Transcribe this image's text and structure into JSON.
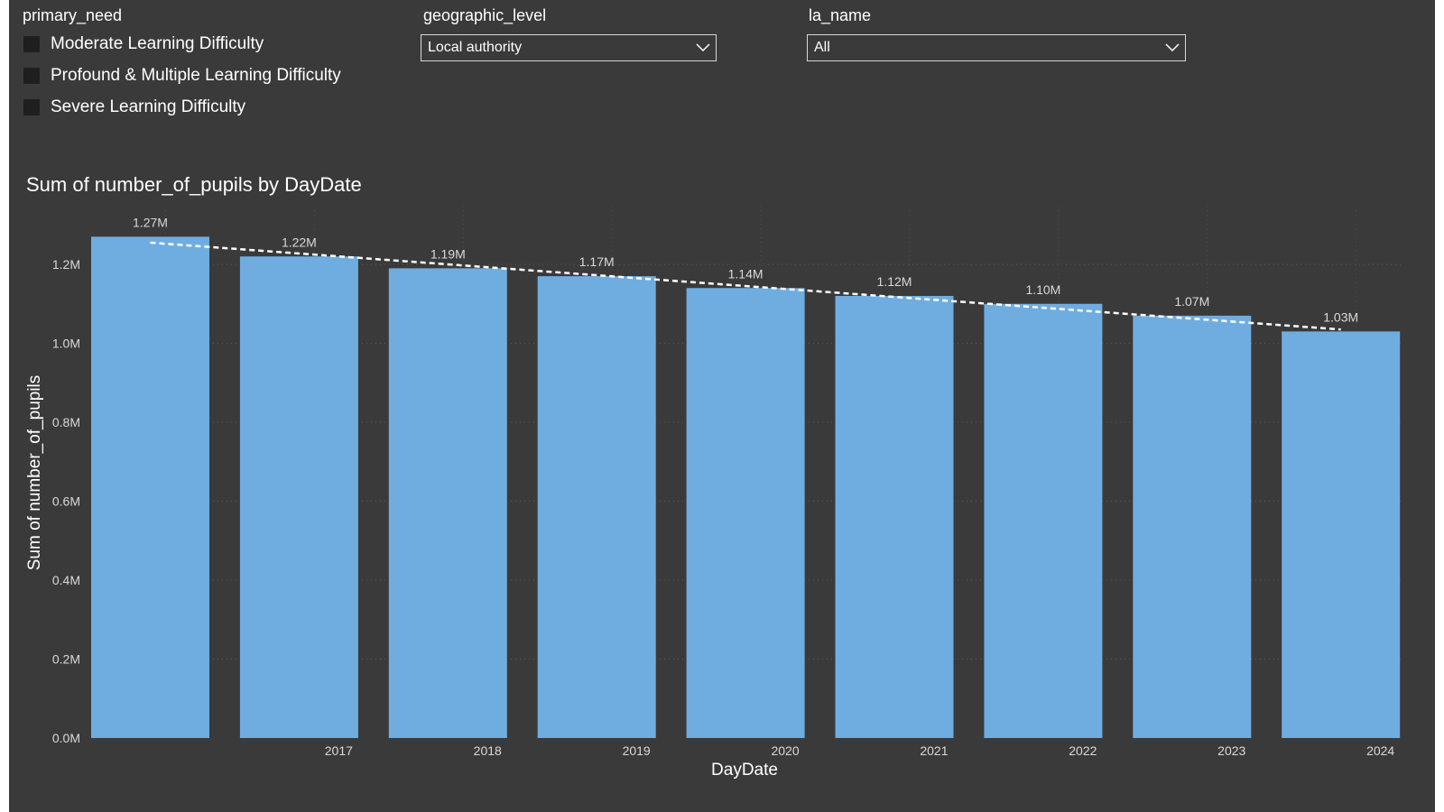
{
  "slicers": {
    "primary_need": {
      "title": "primary_need",
      "options": [
        {
          "label": "Moderate Learning Difficulty",
          "checked": false
        },
        {
          "label": "Profound & Multiple Learning Difficulty",
          "checked": false
        },
        {
          "label": "Severe Learning Difficulty",
          "checked": false
        }
      ]
    },
    "geographic_level": {
      "title": "geographic_level",
      "selected": "Local authority",
      "icon": "chevron-down-icon"
    },
    "la_name": {
      "title": "la_name",
      "selected": "All",
      "icon": "chevron-down-icon"
    }
  },
  "colors": {
    "background": "#3a3a3a",
    "bar": "#6fade0",
    "text": "#ffffff",
    "axis_text": "#d9d9d9",
    "trendline": "#ffffff"
  },
  "chart_data": {
    "type": "bar",
    "title": "Sum of number_of_pupils by DayDate",
    "xlabel": "DayDate",
    "ylabel": "Sum of number_of_pupils",
    "categories": [
      "",
      "2017",
      "2018",
      "2019",
      "2020",
      "2021",
      "2022",
      "2023",
      "2024"
    ],
    "values": [
      1.27,
      1.22,
      1.19,
      1.17,
      1.14,
      1.12,
      1.1,
      1.07,
      1.03
    ],
    "value_unit": "M",
    "data_labels": [
      "1.27M",
      "1.22M",
      "1.19M",
      "1.17M",
      "1.14M",
      "1.12M",
      "1.10M",
      "1.07M",
      "1.03M"
    ],
    "yticks": [
      "0.0M",
      "0.2M",
      "0.4M",
      "0.6M",
      "0.8M",
      "1.0M",
      "1.2M"
    ],
    "ylim": [
      0,
      1.32
    ],
    "trendline": {
      "style": "dashed",
      "start": 1.255,
      "end": 1.035
    },
    "grid": "dotted",
    "legend": "none"
  }
}
